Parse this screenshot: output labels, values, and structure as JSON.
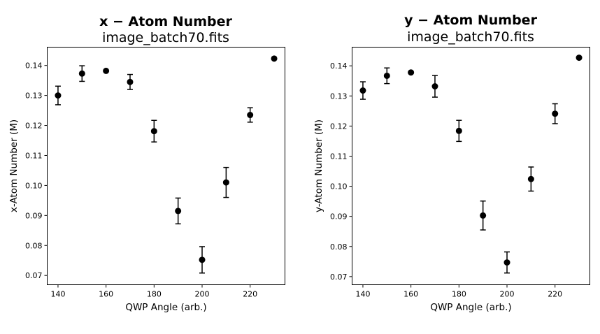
{
  "chart_data": [
    {
      "type": "scatter",
      "title": "x − Atom Number",
      "subtitle": "image_batch70.fits",
      "xlabel": "QWP Angle (arb.)",
      "ylabel": "x-Atom Number (M)",
      "xlim": [
        135.5,
        234.5
      ],
      "ylim": [
        0.0669,
        0.1461
      ],
      "xticks": [
        140,
        160,
        180,
        200,
        220
      ],
      "yticks": [
        0.07,
        0.08,
        0.09,
        0.1,
        0.11,
        0.12,
        0.13,
        0.14
      ],
      "ytick_labels": [
        "0.07",
        "0.08",
        "0.09",
        "0.10",
        "0.11",
        "0.12",
        "0.13",
        "0.14"
      ],
      "grid": false,
      "points": [
        {
          "x": 140,
          "y": 0.13,
          "err": 0.0031
        },
        {
          "x": 150,
          "y": 0.1373,
          "err": 0.0026
        },
        {
          "x": 160,
          "y": 0.1382,
          "err": 0
        },
        {
          "x": 170,
          "y": 0.1345,
          "err": 0.0025
        },
        {
          "x": 180,
          "y": 0.1181,
          "err": 0.0036
        },
        {
          "x": 190,
          "y": 0.0915,
          "err": 0.0043
        },
        {
          "x": 200,
          "y": 0.0752,
          "err": 0.0044
        },
        {
          "x": 210,
          "y": 0.101,
          "err": 0.005
        },
        {
          "x": 220,
          "y": 0.1235,
          "err": 0.0024
        },
        {
          "x": 230,
          "y": 0.1423,
          "err": 0
        }
      ]
    },
    {
      "type": "scatter",
      "title": "y − Atom Number",
      "subtitle": "image_batch70.fits",
      "xlabel": "QWP Angle (arb.)",
      "ylabel": "y-Atom Number (M)",
      "xlim": [
        135.5,
        234.5
      ],
      "ylim": [
        0.0673,
        0.1462
      ],
      "xticks": [
        140,
        160,
        180,
        200,
        220
      ],
      "yticks": [
        0.07,
        0.08,
        0.09,
        0.1,
        0.11,
        0.12,
        0.13,
        0.14
      ],
      "ytick_labels": [
        "0.07",
        "0.08",
        "0.09",
        "0.10",
        "0.11",
        "0.12",
        "0.13",
        "0.14"
      ],
      "grid": false,
      "points": [
        {
          "x": 140,
          "y": 0.1318,
          "err": 0.0029
        },
        {
          "x": 150,
          "y": 0.1367,
          "err": 0.0026
        },
        {
          "x": 160,
          "y": 0.1378,
          "err": 0
        },
        {
          "x": 170,
          "y": 0.1332,
          "err": 0.0036
        },
        {
          "x": 180,
          "y": 0.1184,
          "err": 0.0035
        },
        {
          "x": 190,
          "y": 0.0903,
          "err": 0.0048
        },
        {
          "x": 200,
          "y": 0.0747,
          "err": 0.0035
        },
        {
          "x": 210,
          "y": 0.1024,
          "err": 0.004
        },
        {
          "x": 220,
          "y": 0.1241,
          "err": 0.0033
        },
        {
          "x": 230,
          "y": 0.1427,
          "err": 0
        }
      ]
    }
  ]
}
